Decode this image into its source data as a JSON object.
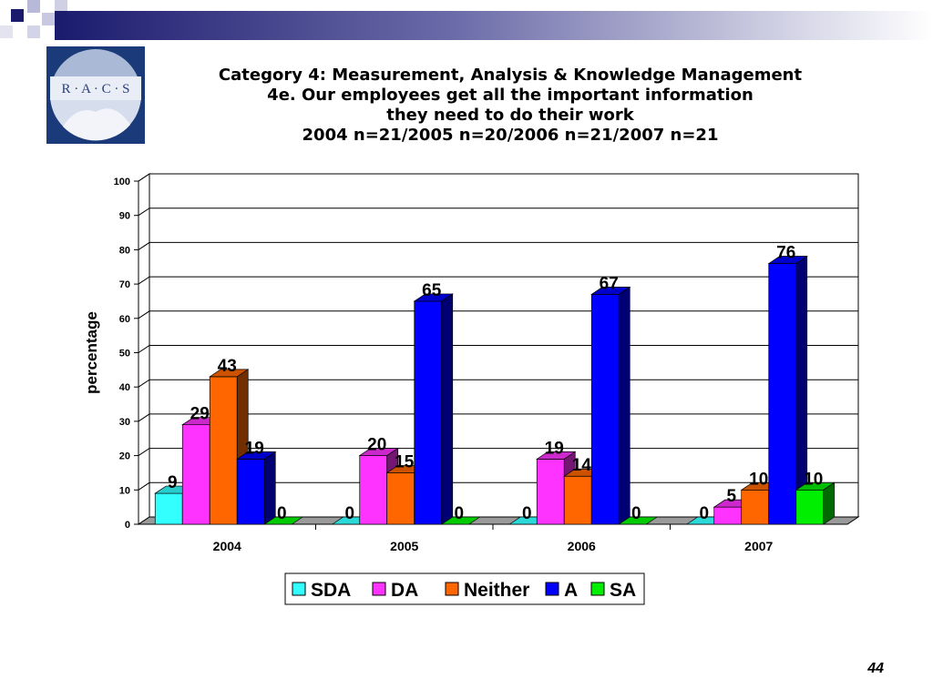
{
  "slide": {
    "title_lines": [
      "Category 4: Measurement, Analysis & Knowledge Management",
      "4e. Our employees get all the important information",
      "they need to do their work",
      "2004 n=21/2005 n=20/2006 n=21/2007 n=21"
    ],
    "logo_text": "R · A · C · S",
    "page_number": "44",
    "colors": {
      "banner_dark": "#1b1b6e",
      "logo_bg": "#1b3a7a"
    }
  },
  "chart_data": {
    "type": "bar",
    "title": "",
    "xlabel": "",
    "ylabel": "percentage",
    "ylim": [
      0,
      100
    ],
    "yticks": [
      0,
      10,
      20,
      30,
      40,
      50,
      60,
      70,
      80,
      90,
      100
    ],
    "categories": [
      "2004",
      "2005",
      "2006",
      "2007"
    ],
    "series": [
      {
        "name": "SDA",
        "color": "#33ffff",
        "values": [
          9,
          0,
          0,
          0
        ],
        "labels": [
          "9",
          "0",
          "0",
          "0"
        ]
      },
      {
        "name": "DA",
        "color": "#ff33ff",
        "values": [
          29,
          20,
          19,
          5
        ],
        "labels": [
          "29",
          "20",
          "19",
          "5"
        ]
      },
      {
        "name": "Neither",
        "color": "#ff6600",
        "values": [
          43,
          15,
          14,
          10
        ],
        "labels": [
          "43",
          "15",
          "14",
          "10"
        ]
      },
      {
        "name": "A",
        "color": "#0000ff",
        "values": [
          19,
          65,
          67,
          76
        ],
        "labels": [
          "19",
          "65",
          "67",
          "76"
        ]
      },
      {
        "name": "SA",
        "color": "#00ee00",
        "values": [
          0,
          0,
          0,
          10
        ],
        "labels": [
          "0",
          "0",
          "0",
          "10"
        ]
      }
    ],
    "grid": true,
    "legend_position": "bottom"
  }
}
